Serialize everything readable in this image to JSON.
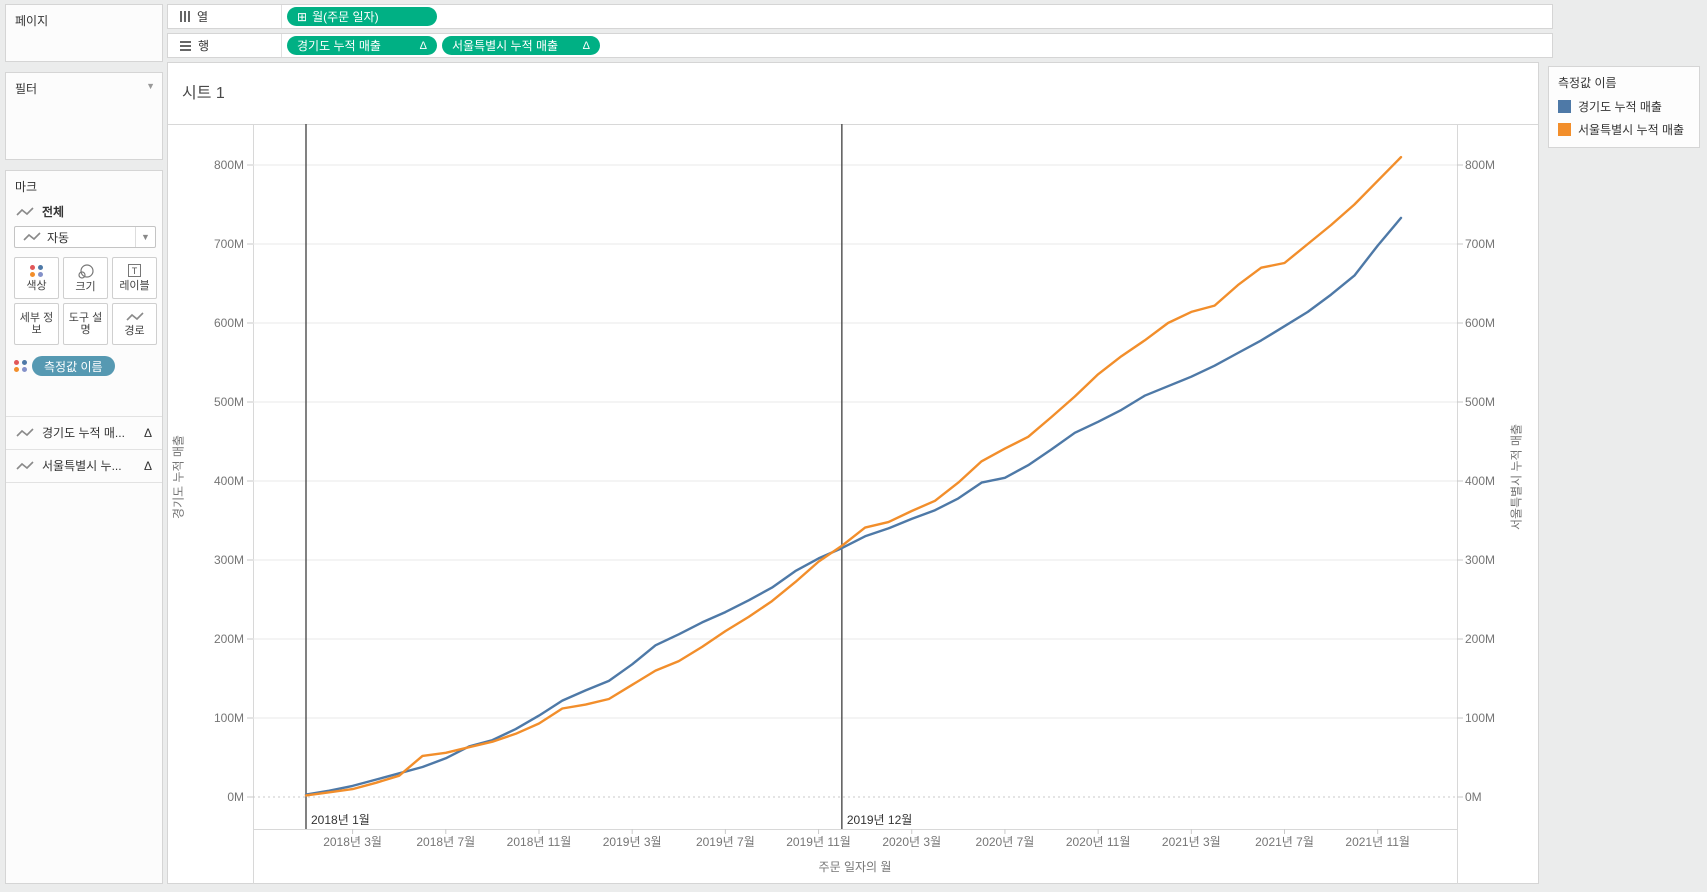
{
  "left_panel": {
    "pages": {
      "title": "페이지"
    },
    "filters": {
      "title": "필터"
    },
    "marks": {
      "title": "마크",
      "all_label": "전체",
      "mark_type": "자동",
      "buttons": [
        {
          "label": "색상"
        },
        {
          "label": "크기"
        },
        {
          "label": "레이블"
        },
        {
          "label": "세부 정보"
        },
        {
          "label": "도구 설명"
        },
        {
          "label": "경로"
        }
      ],
      "color_pill": "측정값 이름",
      "fields": [
        {
          "label": "경기도 누적 매...",
          "badge": "Δ"
        },
        {
          "label": "서울특별시 누...",
          "badge": "Δ"
        }
      ]
    }
  },
  "shelves": {
    "columns": {
      "label": "열",
      "pills": [
        {
          "text": "월(주문 일자)",
          "icon": "⊞"
        }
      ]
    },
    "rows": {
      "label": "행",
      "pills": [
        {
          "text": "경기도 누적 매출",
          "badge": "Δ"
        },
        {
          "text": "서울특별시 누적 매출",
          "badge": "Δ"
        }
      ]
    }
  },
  "sheet": {
    "title": "시트 1"
  },
  "legend": {
    "title": "측정값 이름",
    "entries": [
      {
        "label": "경기도 누적 매출",
        "color": "#4e79a7"
      },
      {
        "label": "서울특별시 누적 매출",
        "color": "#f28e2b"
      }
    ]
  },
  "chart_data": {
    "type": "line",
    "title": "시트 1",
    "xlabel": "주문 일자의 월",
    "ylabel_left": "경기도 누적 매출",
    "ylabel_right": "서울특별시 누적 매출",
    "unit": "M (백만)",
    "ylim": [
      0,
      852
    ],
    "grid": "horizontal",
    "y_ticks": [
      {
        "value": 0,
        "label": "0M"
      },
      {
        "value": 100,
        "label": "100M"
      },
      {
        "value": 200,
        "label": "200M"
      },
      {
        "value": 300,
        "label": "300M"
      },
      {
        "value": 400,
        "label": "400M"
      },
      {
        "value": 500,
        "label": "500M"
      },
      {
        "value": 600,
        "label": "600M"
      },
      {
        "value": 700,
        "label": "700M"
      },
      {
        "value": 800,
        "label": "800M"
      }
    ],
    "x": [
      "2018-01",
      "2018-02",
      "2018-03",
      "2018-04",
      "2018-05",
      "2018-06",
      "2018-07",
      "2018-08",
      "2018-09",
      "2018-10",
      "2018-11",
      "2018-12",
      "2019-01",
      "2019-02",
      "2019-03",
      "2019-04",
      "2019-05",
      "2019-06",
      "2019-07",
      "2019-08",
      "2019-09",
      "2019-10",
      "2019-11",
      "2019-12",
      "2020-01",
      "2020-02",
      "2020-03",
      "2020-04",
      "2020-05",
      "2020-06",
      "2020-07",
      "2020-08",
      "2020-09",
      "2020-10",
      "2020-11",
      "2020-12",
      "2021-01",
      "2021-02",
      "2021-03",
      "2021-04",
      "2021-05",
      "2021-06",
      "2021-07",
      "2021-08",
      "2021-09",
      "2021-10",
      "2021-11",
      "2021-12"
    ],
    "x_ticks": [
      {
        "index": 2,
        "label": "2018년 3월"
      },
      {
        "index": 6,
        "label": "2018년 7월"
      },
      {
        "index": 10,
        "label": "2018년 11월"
      },
      {
        "index": 14,
        "label": "2019년 3월"
      },
      {
        "index": 18,
        "label": "2019년 7월"
      },
      {
        "index": 22,
        "label": "2019년 11월"
      },
      {
        "index": 26,
        "label": "2020년 3월"
      },
      {
        "index": 30,
        "label": "2020년 7월"
      },
      {
        "index": 34,
        "label": "2020년 11월"
      },
      {
        "index": 38,
        "label": "2021년 3월"
      },
      {
        "index": 42,
        "label": "2021년 7월"
      },
      {
        "index": 46,
        "label": "2021년 11월"
      }
    ],
    "reference_lines": [
      {
        "index": 0,
        "label": "2018년 1월"
      },
      {
        "index": 23,
        "label": "2019년 12월"
      }
    ],
    "series": [
      {
        "name": "경기도 누적 매출",
        "axis": "left",
        "color": "#4e79a7",
        "values": [
          3,
          8,
          14,
          22,
          30,
          38,
          49,
          64,
          72,
          86,
          103,
          122,
          135,
          147,
          168,
          192,
          206,
          221,
          234,
          249,
          265,
          286,
          302,
          315,
          330,
          340,
          352,
          363,
          378,
          398,
          404,
          420,
          440,
          461,
          475,
          490,
          508,
          520,
          532,
          546,
          562,
          578,
          596,
          614,
          636,
          660,
          698,
          733
        ]
      },
      {
        "name": "서울특별시 누적 매출",
        "axis": "right",
        "color": "#f28e2b",
        "values": [
          2,
          6,
          10,
          18,
          27,
          52,
          56,
          63,
          70,
          80,
          93,
          112,
          117,
          124,
          142,
          160,
          172,
          190,
          210,
          228,
          248,
          272,
          298,
          318,
          341,
          348,
          362,
          375,
          398,
          425,
          441,
          456,
          481,
          507,
          535,
          558,
          578,
          600,
          614,
          622,
          648,
          670,
          676,
          700,
          724,
          750,
          780,
          810
        ]
      }
    ]
  }
}
